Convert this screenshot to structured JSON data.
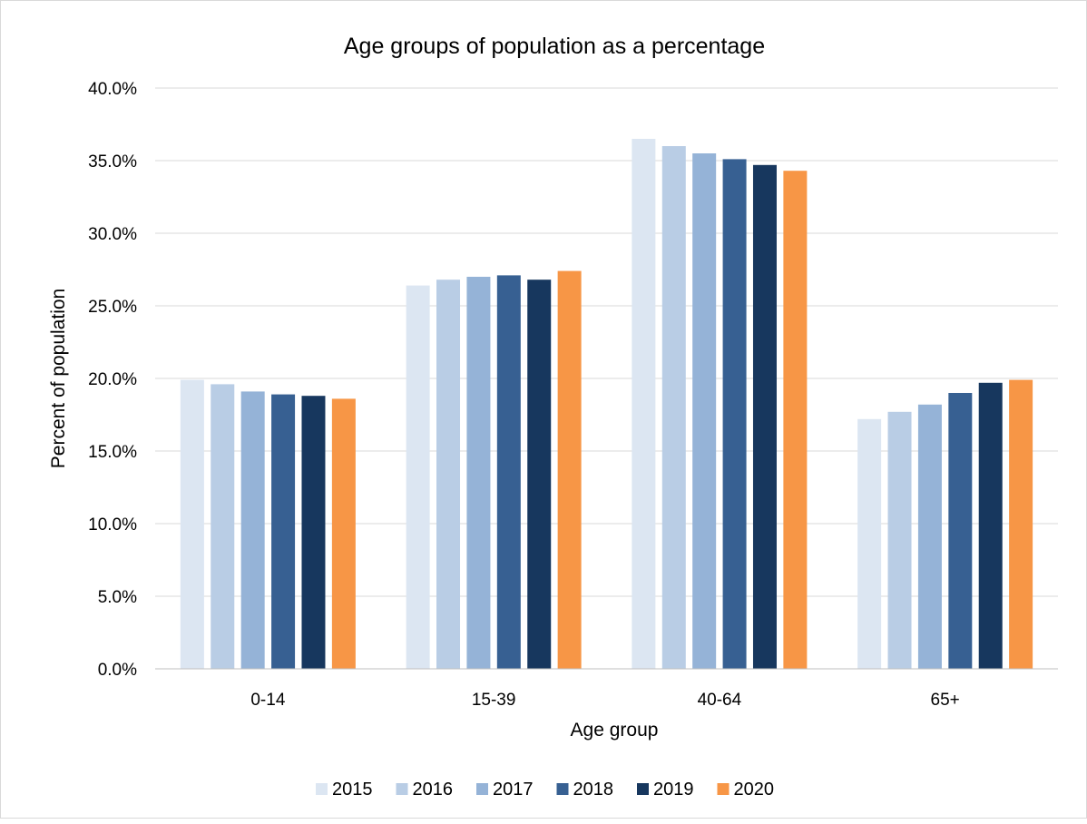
{
  "chart_data": {
    "type": "bar",
    "title": "Age groups of population as a percentage",
    "xlabel": "Age group",
    "ylabel": "Percent of population",
    "categories": [
      "0-14",
      "15-39",
      "40-64",
      "65+"
    ],
    "ylim": [
      0,
      40
    ],
    "yticks": [
      "0.0%",
      "5.0%",
      "10.0%",
      "15.0%",
      "20.0%",
      "25.0%",
      "30.0%",
      "35.0%",
      "40.0%"
    ],
    "grid": true,
    "legend_position": "bottom",
    "series": [
      {
        "name": "2015",
        "color": "#dce6f2",
        "values": [
          19.9,
          26.4,
          36.5,
          17.2
        ]
      },
      {
        "name": "2016",
        "color": "#b9cde5",
        "values": [
          19.6,
          26.8,
          36.0,
          17.7
        ]
      },
      {
        "name": "2017",
        "color": "#95b3d7",
        "values": [
          19.1,
          27.0,
          35.5,
          18.2
        ]
      },
      {
        "name": "2018",
        "color": "#376092",
        "values": [
          18.9,
          27.1,
          35.1,
          19.0
        ]
      },
      {
        "name": "2019",
        "color": "#17375e",
        "values": [
          18.8,
          26.8,
          34.7,
          19.7
        ]
      },
      {
        "name": "2020",
        "color": "#f79646",
        "values": [
          18.6,
          27.4,
          34.3,
          19.9
        ]
      }
    ]
  }
}
